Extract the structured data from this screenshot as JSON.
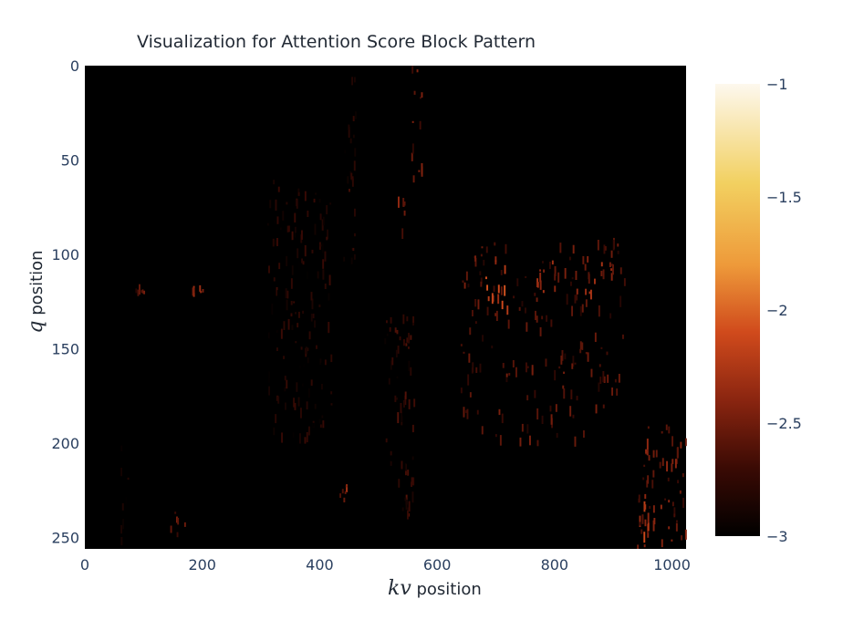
{
  "chart_data": {
    "type": "heatmap",
    "title": "Visualization for Attention Score Block Pattern",
    "xlabel_symbol": "kv",
    "xlabel_text": " position",
    "ylabel_symbol": "q",
    "ylabel_text": " position",
    "xlim": [
      0,
      1024
    ],
    "ylim": [
      0,
      256
    ],
    "y_reversed": true,
    "x_ticks": [
      0,
      200,
      400,
      600,
      800,
      1000
    ],
    "y_ticks": [
      0,
      50,
      100,
      150,
      200,
      250
    ],
    "colorscale": [
      "#000000",
      "#3a0a04",
      "#8a2510",
      "#d04a1c",
      "#ee9a3a",
      "#f2d060",
      "#fdf8ee"
    ],
    "zlim": [
      -3,
      -1
    ],
    "colorbar_ticks": [
      "−1",
      "−1.5",
      "−2",
      "−2.5",
      "−3"
    ],
    "colorbar_tick_values": [
      -1,
      -1.5,
      -2,
      -2.5,
      -3
    ],
    "features": [
      {
        "x": [
          440,
          460
        ],
        "y": [
          0,
          110
        ],
        "value": -2.8
      },
      {
        "x": [
          555,
          575
        ],
        "y": [
          0,
          60
        ],
        "value": -2.55
      },
      {
        "x": [
          530,
          545
        ],
        "y": [
          60,
          90
        ],
        "value": -2.5
      },
      {
        "x": [
          510,
          560
        ],
        "y": [
          130,
          240
        ],
        "value": -2.75
      },
      {
        "x": [
          640,
          920
        ],
        "y": [
          90,
          200
        ],
        "value": -2.6
      },
      {
        "x": [
          680,
          720
        ],
        "y": [
          100,
          130
        ],
        "value": -2.15
      },
      {
        "x": [
          760,
          800
        ],
        "y": [
          100,
          125
        ],
        "value": -2.35
      },
      {
        "x": [
          830,
          880
        ],
        "y": [
          100,
          120
        ],
        "value": -2.35
      },
      {
        "x": [
          880,
          900
        ],
        "y": [
          95,
          110
        ],
        "value": -2.4
      },
      {
        "x": [
          940,
          1024
        ],
        "y": [
          190,
          256
        ],
        "value": -2.5
      },
      {
        "x": [
          950,
          960
        ],
        "y": [
          225,
          250
        ],
        "value": -2.2
      },
      {
        "x": [
          180,
          200
        ],
        "y": [
          115,
          125
        ],
        "value": -2.4
      },
      {
        "x": [
          85,
          100
        ],
        "y": [
          115,
          120
        ],
        "value": -2.6
      },
      {
        "x": [
          430,
          445
        ],
        "y": [
          218,
          230
        ],
        "value": -2.4
      },
      {
        "x": [
          310,
          420
        ],
        "y": [
          60,
          200
        ],
        "value": -2.85
      },
      {
        "x": [
          140,
          170
        ],
        "y": [
          235,
          250
        ],
        "value": -2.6
      },
      {
        "x": [
          60,
          75
        ],
        "y": [
          200,
          250
        ],
        "value": -2.85
      }
    ]
  }
}
